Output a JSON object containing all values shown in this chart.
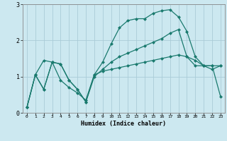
{
  "xlabel": "Humidex (Indice chaleur)",
  "ylabel": "",
  "bg_color": "#cce8f0",
  "line_color": "#1a7a6e",
  "grid_color": "#aaccd8",
  "xlim": [
    -0.5,
    23.5
  ],
  "ylim": [
    0,
    3
  ],
  "yticks": [
    0,
    1,
    2,
    3
  ],
  "xticks": [
    0,
    1,
    2,
    3,
    4,
    5,
    6,
    7,
    8,
    9,
    10,
    11,
    12,
    13,
    14,
    15,
    16,
    17,
    18,
    19,
    20,
    21,
    22,
    23
  ],
  "line1_x": [
    0,
    1,
    2,
    3,
    4,
    5,
    6,
    7,
    8,
    9,
    10,
    11,
    12,
    13,
    14,
    15,
    16,
    17,
    18,
    19,
    20,
    21,
    22,
    23
  ],
  "line1_y": [
    0.15,
    1.05,
    1.45,
    1.4,
    0.9,
    0.7,
    0.55,
    0.35,
    1.05,
    1.15,
    1.2,
    1.25,
    1.3,
    1.35,
    1.4,
    1.45,
    1.5,
    1.55,
    1.6,
    1.55,
    1.45,
    1.3,
    1.2,
    1.3
  ],
  "line2_x": [
    0,
    1,
    2,
    3,
    4,
    5,
    6,
    7,
    8,
    9,
    10,
    11,
    12,
    13,
    14,
    15,
    16,
    17,
    18,
    19,
    20,
    21,
    22,
    23
  ],
  "line2_y": [
    0.15,
    1.05,
    0.65,
    1.4,
    1.35,
    0.9,
    0.65,
    0.3,
    1.05,
    1.4,
    1.9,
    2.35,
    2.55,
    2.6,
    2.6,
    2.75,
    2.82,
    2.85,
    2.65,
    2.25,
    1.55,
    1.3,
    1.3,
    1.3
  ],
  "line3_x": [
    0,
    1,
    2,
    3,
    4,
    5,
    6,
    7,
    8,
    9,
    10,
    11,
    12,
    13,
    14,
    15,
    16,
    17,
    18,
    19,
    20,
    21,
    22,
    23
  ],
  "line3_y": [
    0.15,
    1.05,
    0.65,
    1.4,
    1.35,
    0.9,
    0.65,
    0.3,
    1.0,
    1.2,
    1.4,
    1.55,
    1.65,
    1.75,
    1.85,
    1.95,
    2.05,
    2.2,
    2.3,
    1.55,
    1.3,
    1.3,
    1.3,
    0.45
  ],
  "markersize": 2.5,
  "linewidth": 0.9
}
